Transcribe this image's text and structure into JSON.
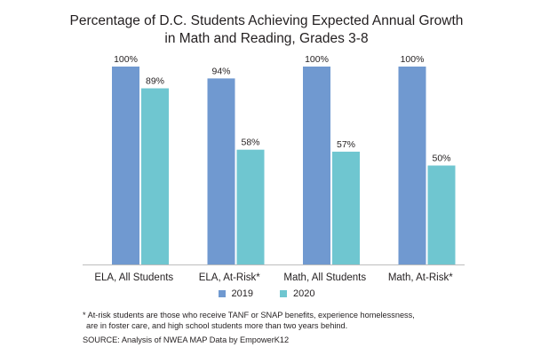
{
  "chart_data": {
    "type": "bar",
    "title": "Percentage of D.C. Students Achieving Expected Annual Growth",
    "subtitle": "in Math and Reading, Grades 3-8",
    "categories": [
      "ELA, All Students",
      "ELA, At-Risk*",
      "Math, All Students",
      "Math, At-Risk*"
    ],
    "series": [
      {
        "name": "2019",
        "values": [
          100,
          94,
          100,
          100
        ],
        "labels": [
          "100%",
          "94%",
          "100%",
          "100%"
        ],
        "color": "#7099d0"
      },
      {
        "name": "2020",
        "values": [
          89,
          58,
          57,
          50
        ],
        "labels": [
          "89%",
          "58%",
          "57%",
          "50%"
        ],
        "color": "#6fc6d0"
      }
    ],
    "ylim": [
      0,
      100
    ],
    "grid": false,
    "legend_position": "bottom",
    "footnote_line1": "* At-risk students are those who receive TANF or SNAP benefits, experience homelessness,",
    "footnote_line2": "are in foster care, and high school students more than two years behind.",
    "source": "SOURCE: Analysis of NWEA MAP Data by EmpowerK12"
  }
}
